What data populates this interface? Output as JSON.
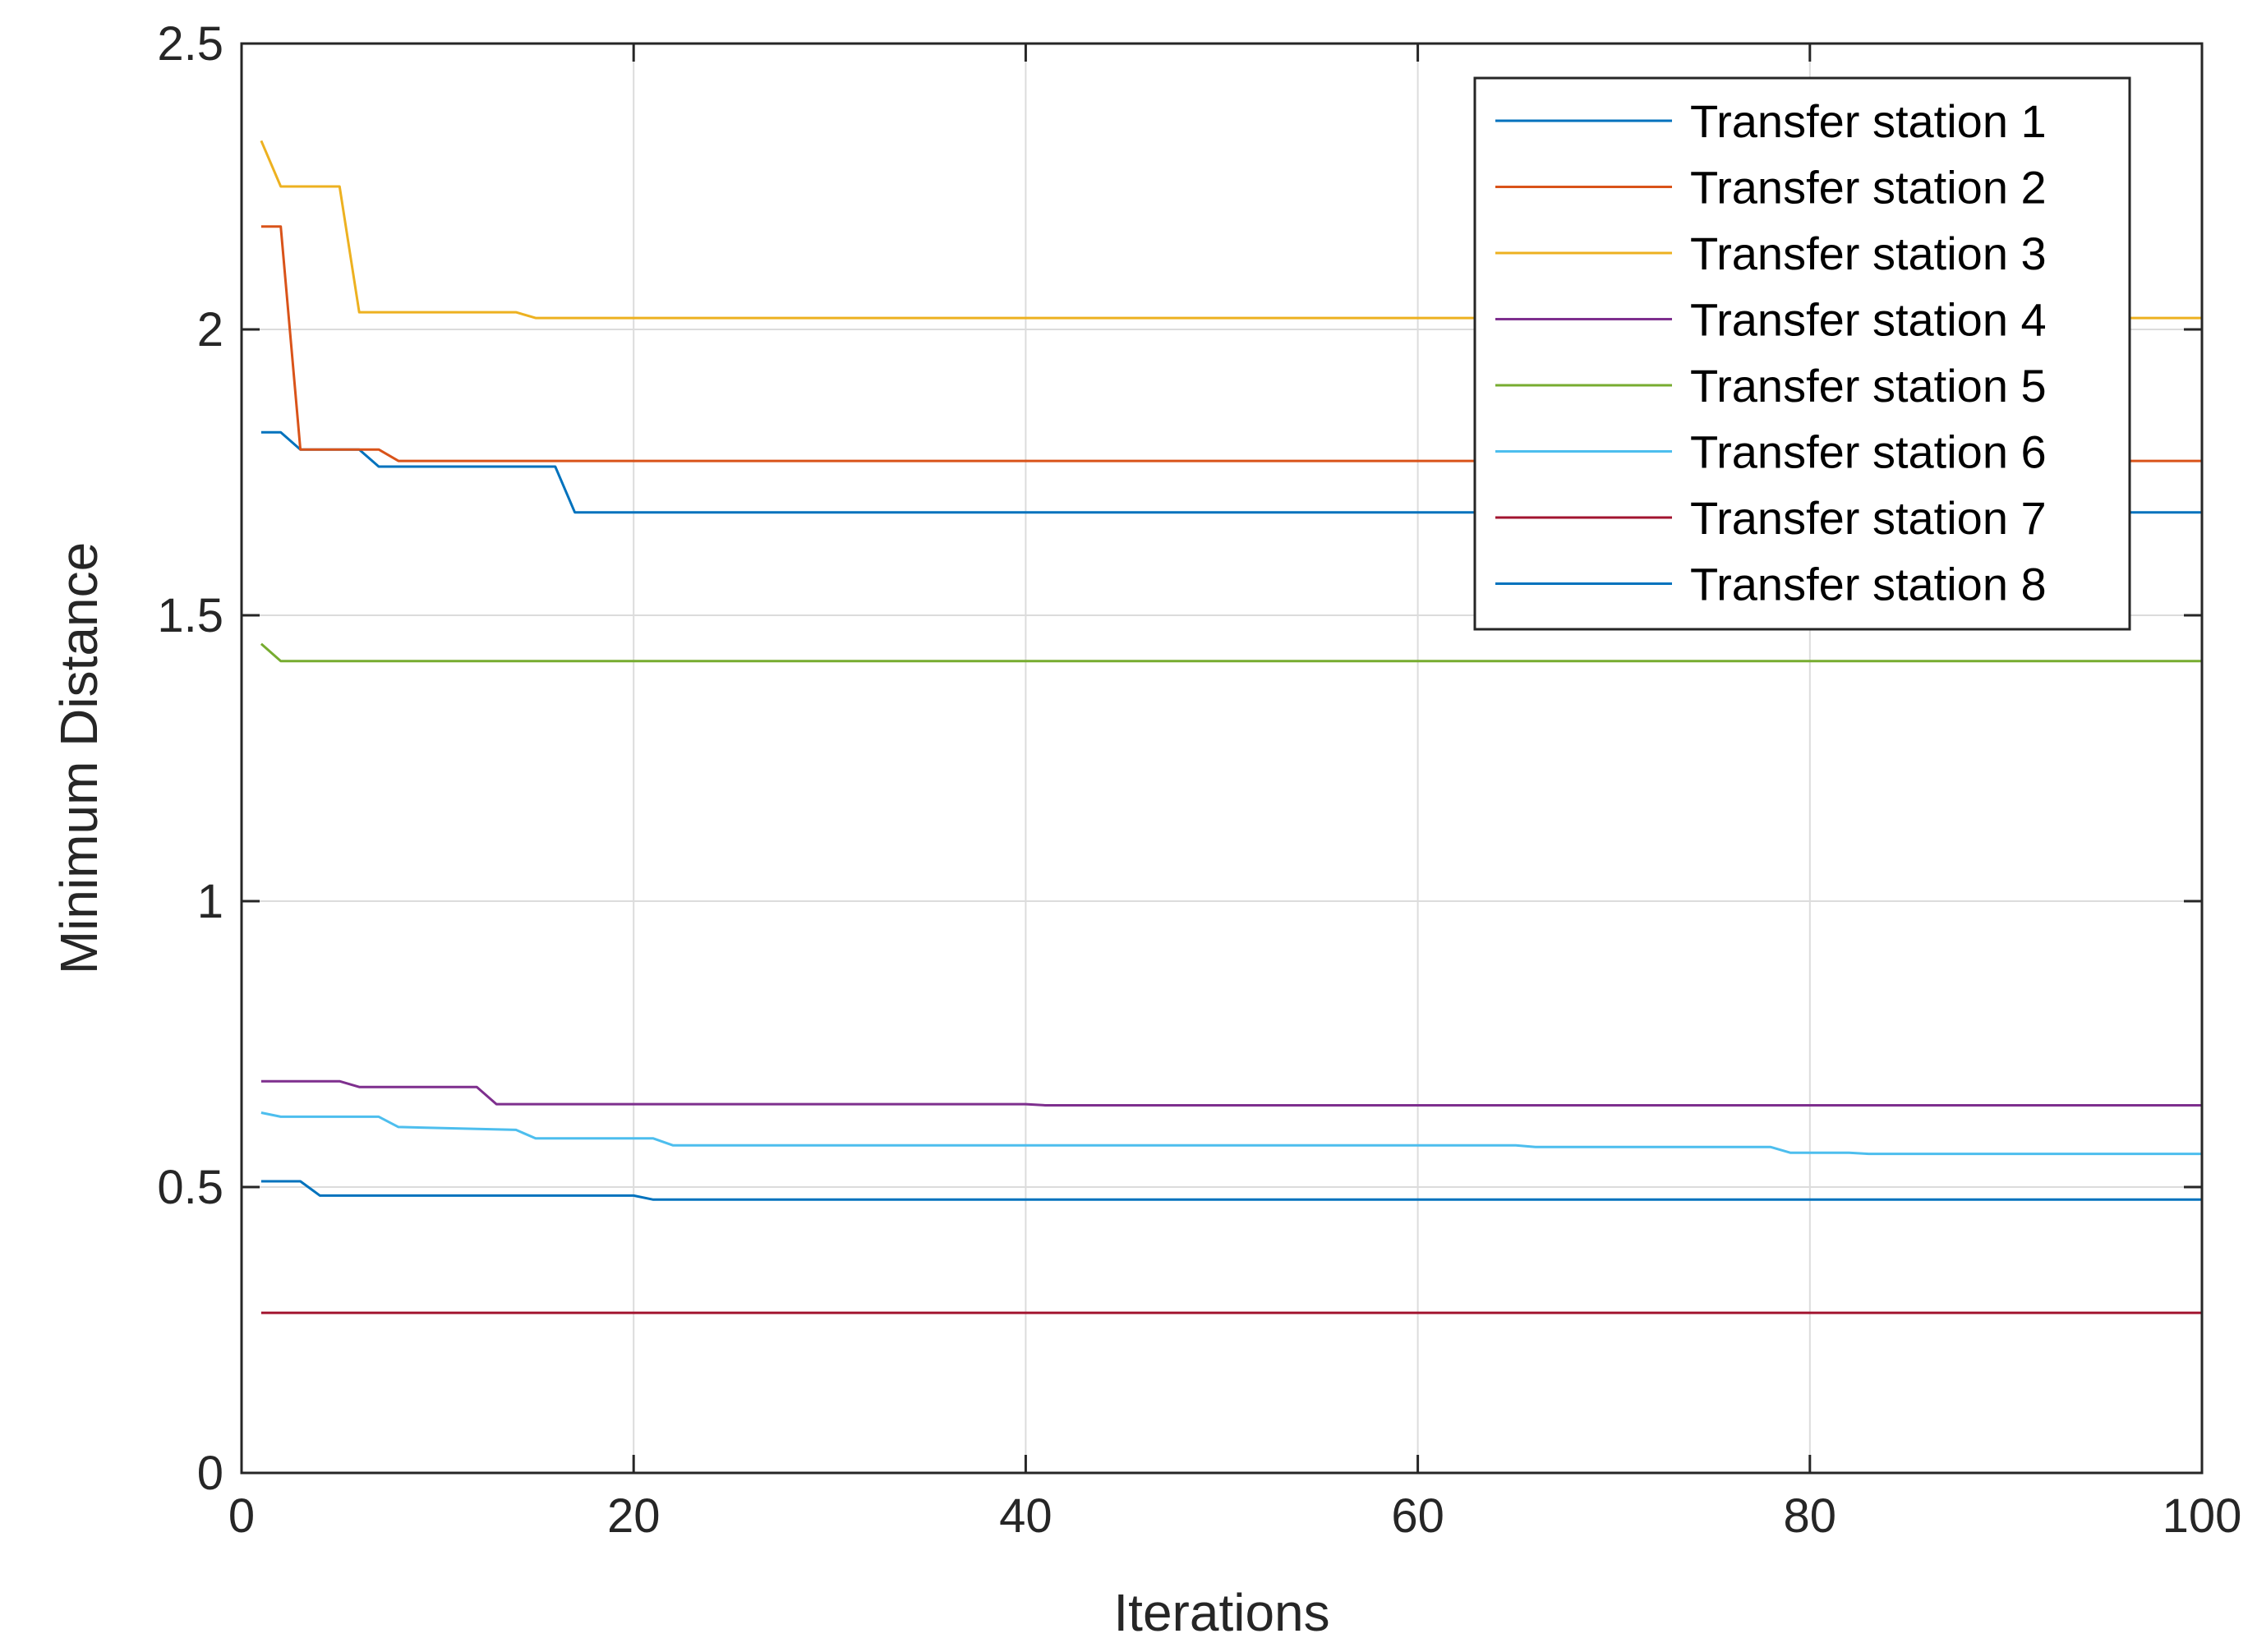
{
  "chart_data": {
    "type": "line",
    "title": "",
    "xlabel": "Iterations",
    "ylabel": "Minimum Distance",
    "xlim": [
      0,
      100
    ],
    "ylim": [
      0,
      2.5
    ],
    "xticks": [
      0,
      20,
      40,
      60,
      80,
      100
    ],
    "xtick_labels": [
      "0",
      "20",
      "40",
      "60",
      "80",
      "100"
    ],
    "yticks": [
      0,
      0.5,
      1,
      1.5,
      2,
      2.5
    ],
    "ytick_labels": [
      "0",
      "0.5",
      "1",
      "1.5",
      "2",
      "2.5"
    ],
    "grid": true,
    "legend_position": "top-right",
    "series": [
      {
        "name": "Transfer station 1",
        "color": "#0072BD",
        "points": [
          [
            1,
            1.82
          ],
          [
            2,
            1.82
          ],
          [
            3,
            1.79
          ],
          [
            6,
            1.79
          ],
          [
            7,
            1.76
          ],
          [
            16,
            1.76
          ],
          [
            17,
            1.68
          ],
          [
            100,
            1.68
          ]
        ]
      },
      {
        "name": "Transfer station 2",
        "color": "#D95319",
        "points": [
          [
            1,
            2.18
          ],
          [
            2,
            2.18
          ],
          [
            3,
            1.79
          ],
          [
            7,
            1.79
          ],
          [
            8,
            1.77
          ],
          [
            100,
            1.77
          ]
        ]
      },
      {
        "name": "Transfer station 3",
        "color": "#EDB120",
        "points": [
          [
            1,
            2.33
          ],
          [
            2,
            2.25
          ],
          [
            5,
            2.25
          ],
          [
            6,
            2.03
          ],
          [
            14,
            2.03
          ],
          [
            15,
            2.02
          ],
          [
            100,
            2.02
          ]
        ]
      },
      {
        "name": "Transfer station 4",
        "color": "#7E2F8E",
        "points": [
          [
            1,
            0.685
          ],
          [
            5,
            0.685
          ],
          [
            6,
            0.675
          ],
          [
            12,
            0.675
          ],
          [
            13,
            0.645
          ],
          [
            40,
            0.645
          ],
          [
            41,
            0.643
          ],
          [
            100,
            0.643
          ]
        ]
      },
      {
        "name": "Transfer station 5",
        "color": "#77AC30",
        "points": [
          [
            1,
            1.45
          ],
          [
            2,
            1.42
          ],
          [
            100,
            1.42
          ]
        ]
      },
      {
        "name": "Transfer station 6",
        "color": "#4DBEEE",
        "points": [
          [
            1,
            0.63
          ],
          [
            2,
            0.623
          ],
          [
            7,
            0.623
          ],
          [
            8,
            0.605
          ],
          [
            14,
            0.6
          ],
          [
            15,
            0.585
          ],
          [
            21,
            0.585
          ],
          [
            22,
            0.573
          ],
          [
            65,
            0.573
          ],
          [
            66,
            0.57
          ],
          [
            78,
            0.57
          ],
          [
            79,
            0.56
          ],
          [
            82,
            0.56
          ],
          [
            83,
            0.558
          ],
          [
            100,
            0.558
          ]
        ]
      },
      {
        "name": "Transfer station 7",
        "color": "#A2142F",
        "points": [
          [
            1,
            0.28
          ],
          [
            100,
            0.28
          ]
        ]
      },
      {
        "name": "Transfer station 8",
        "color": "#0072BD",
        "points": [
          [
            1,
            0.51
          ],
          [
            3,
            0.51
          ],
          [
            4,
            0.485
          ],
          [
            20,
            0.485
          ],
          [
            21,
            0.478
          ],
          [
            100,
            0.478
          ]
        ]
      }
    ]
  }
}
